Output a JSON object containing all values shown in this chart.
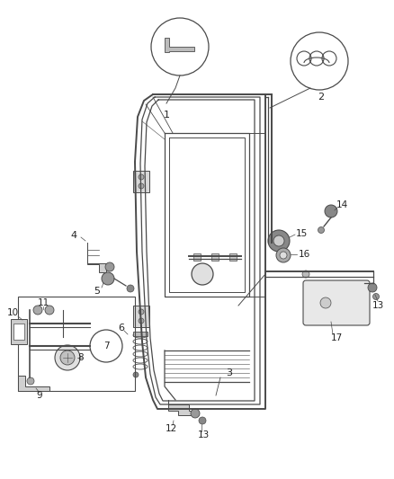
{
  "bg_color": "#ffffff",
  "line_color": "#4a4a4a",
  "lc_light": "#888888",
  "text_color": "#222222",
  "fig_width": 4.38,
  "fig_height": 5.33,
  "dpi": 100
}
